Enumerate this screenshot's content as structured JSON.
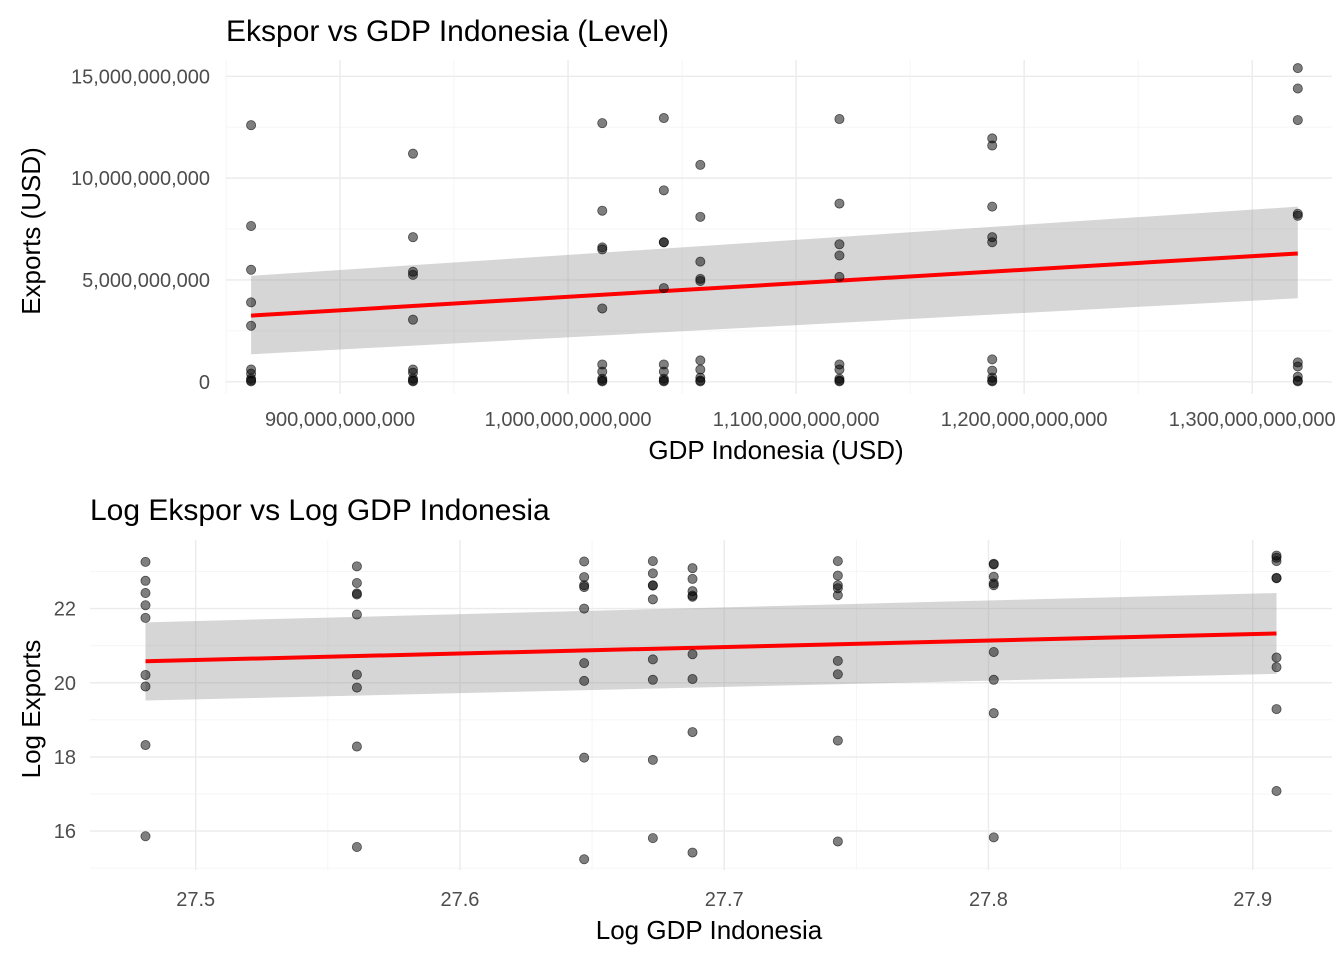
{
  "chart_data": [
    {
      "type": "scatter",
      "title": "Ekspor vs GDP Indonesia (Level)",
      "xlabel": "GDP Indonesia (USD)",
      "ylabel": "Exports (USD)",
      "xlim": [
        850000000000,
        1335000000000
      ],
      "ylim": [
        -600000000,
        15800000000
      ],
      "x_ticks": [
        900000000000,
        1000000000000,
        1100000000000,
        1200000000000,
        1300000000000
      ],
      "x_tick_labels": [
        "900,000,000,000",
        "1,000,000,000,000",
        "1,100,000,000,000",
        "1,200,000,000,000",
        "1,300,000,000,000"
      ],
      "y_ticks": [
        0,
        5000000000,
        10000000000,
        15000000000
      ],
      "y_tick_labels": [
        "0",
        "5,000,000,000",
        "10,000,000,000",
        "15,000,000,000"
      ],
      "grid": true,
      "fit": {
        "x": [
          861000000000,
          1320000000000
        ],
        "y": [
          3250000000,
          6300000000
        ],
        "ci_lower": [
          1350000000,
          4100000000
        ],
        "ci_upper": [
          5200000000,
          8600000000
        ],
        "color": "#ff0000"
      },
      "points": [
        {
          "x": 861000000000,
          "y": [
            12600000000,
            7650000000,
            5500000000,
            3900000000,
            2750000000,
            600000000,
            400000000,
            150000000,
            60000000,
            20000000
          ]
        },
        {
          "x": 932000000000,
          "y": [
            11200000000,
            7100000000,
            5400000000,
            5250000000,
            3050000000,
            600000000,
            450000000,
            150000000,
            60000000,
            20000000
          ]
        },
        {
          "x": 1015000000000,
          "y": [
            12700000000,
            8400000000,
            6600000000,
            6500000000,
            3600000000,
            850000000,
            500000000,
            150000000,
            60000000,
            20000000
          ]
        },
        {
          "x": 1042000000000,
          "y": [
            12950000000,
            9400000000,
            6850000000,
            6850000000,
            4600000000,
            850000000,
            500000000,
            150000000,
            60000000,
            20000000
          ]
        },
        {
          "x": 1058000000000,
          "y": [
            10650000000,
            8100000000,
            5900000000,
            5050000000,
            4950000000,
            1050000000,
            600000000,
            200000000,
            60000000,
            20000000
          ]
        },
        {
          "x": 1119000000000,
          "y": [
            12900000000,
            8750000000,
            6750000000,
            6200000000,
            5150000000,
            850000000,
            600000000,
            150000000,
            60000000,
            20000000
          ]
        },
        {
          "x": 1186000000000,
          "y": [
            11950000000,
            11600000000,
            8600000000,
            7100000000,
            6850000000,
            1100000000,
            550000000,
            200000000,
            60000000,
            20000000
          ]
        },
        {
          "x": 1320000000000,
          "y": [
            15400000000,
            14400000000,
            12850000000,
            8250000000,
            8150000000,
            950000000,
            750000000,
            250000000,
            60000000,
            20000000
          ]
        }
      ]
    },
    {
      "type": "scatter",
      "title": "Log Ekspor vs Log GDP Indonesia",
      "xlabel": "Log GDP Indonesia",
      "ylabel": "Log Exports",
      "xlim": [
        27.46,
        27.93
      ],
      "ylim": [
        14.95,
        23.85
      ],
      "x_ticks": [
        27.5,
        27.6,
        27.7,
        27.8,
        27.9
      ],
      "x_tick_labels": [
        "27.5",
        "27.6",
        "27.7",
        "27.8",
        "27.9"
      ],
      "y_ticks": [
        16,
        18,
        20,
        22
      ],
      "y_tick_labels": [
        "16",
        "18",
        "20",
        "22"
      ],
      "grid": true,
      "fit": {
        "x": [
          27.481,
          27.909
        ],
        "y": [
          20.58,
          21.33
        ],
        "ci_lower": [
          19.52,
          20.24
        ],
        "ci_upper": [
          21.63,
          22.42
        ],
        "color": "#ff0000"
      },
      "points": [
        {
          "x": 27.481,
          "y": [
            23.26,
            22.75,
            22.42,
            22.09,
            21.75,
            20.21,
            19.9,
            18.32,
            15.86
          ]
        },
        {
          "x": 27.561,
          "y": [
            23.14,
            22.69,
            22.41,
            22.38,
            21.84,
            20.22,
            19.87,
            18.28,
            15.57
          ]
        },
        {
          "x": 27.647,
          "y": [
            23.27,
            22.85,
            22.63,
            22.58,
            22.0,
            20.53,
            20.05,
            17.98,
            15.24
          ]
        },
        {
          "x": 27.673,
          "y": [
            23.28,
            22.95,
            22.63,
            22.62,
            22.25,
            20.63,
            20.08,
            17.92,
            15.81
          ]
        },
        {
          "x": 27.688,
          "y": [
            23.09,
            22.8,
            22.47,
            22.35,
            22.32,
            20.77,
            20.1,
            18.67,
            15.42
          ]
        },
        {
          "x": 27.743,
          "y": [
            23.28,
            22.89,
            22.63,
            22.55,
            22.36,
            20.59,
            20.23,
            18.44,
            15.72
          ]
        },
        {
          "x": 27.802,
          "y": [
            23.21,
            23.19,
            22.86,
            22.68,
            22.63,
            20.83,
            20.08,
            19.18,
            15.83
          ]
        },
        {
          "x": 27.909,
          "y": [
            23.43,
            23.37,
            23.28,
            22.83,
            22.82,
            20.68,
            20.42,
            19.29,
            17.08
          ]
        }
      ]
    }
  ]
}
